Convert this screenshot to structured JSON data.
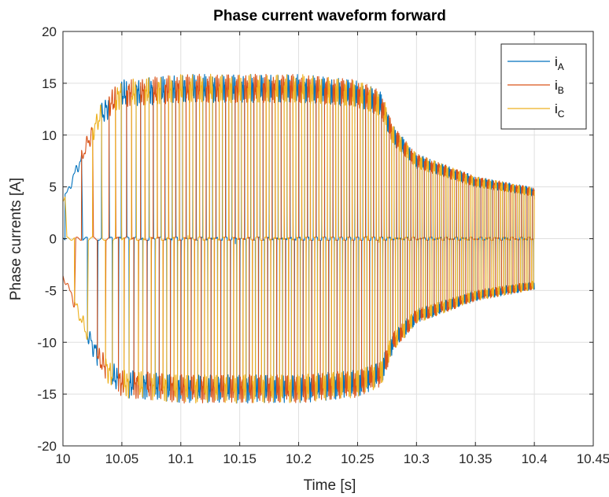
{
  "chart_data": {
    "type": "line",
    "title": "Phase current waveform forward",
    "xlabel": "Time [s]",
    "ylabel": "Phase currents [A]",
    "xlim": [
      10,
      10.45
    ],
    "ylim": [
      -20,
      20
    ],
    "xticks": [
      10,
      10.05,
      10.1,
      10.15,
      10.2,
      10.25,
      10.3,
      10.35,
      10.4,
      10.45
    ],
    "xtick_labels": [
      "10",
      "10.05",
      "10.1",
      "10.15",
      "10.2",
      "10.25",
      "10.3",
      "10.35",
      "10.4",
      "10.45"
    ],
    "yticks": [
      -20,
      -15,
      -10,
      -5,
      0,
      5,
      10,
      15,
      20
    ],
    "ytick_labels": [
      "-20",
      "-15",
      "-10",
      "-5",
      "0",
      "5",
      "10",
      "15",
      "20"
    ],
    "grid": true,
    "legend_position": "top-right",
    "series": [
      {
        "name": "i",
        "subscript": "A",
        "color": "#0072BD",
        "phase_deg": 0
      },
      {
        "name": "i",
        "subscript": "B",
        "color": "#D95319",
        "phase_deg": 120
      },
      {
        "name": "i",
        "subscript": "C",
        "color": "#EDB120",
        "phase_deg": 240
      }
    ],
    "data_range": {
      "t_start": 10.0,
      "t_end": 10.4
    },
    "envelope": {
      "t": [
        10.0,
        10.02,
        10.03,
        10.04,
        10.05,
        10.1,
        10.2,
        10.25,
        10.27,
        10.28,
        10.3,
        10.35,
        10.4
      ],
      "amplitude": [
        3.5,
        9.0,
        11.5,
        13.0,
        14.0,
        14.5,
        14.5,
        14.0,
        13.0,
        10.0,
        7.5,
        5.5,
        4.5
      ]
    },
    "frequency_profile": {
      "t": [
        10.0,
        10.03,
        10.06,
        10.1,
        10.2,
        10.27,
        10.3,
        10.4
      ],
      "hz": [
        15,
        45,
        85,
        115,
        135,
        150,
        175,
        215
      ]
    }
  }
}
